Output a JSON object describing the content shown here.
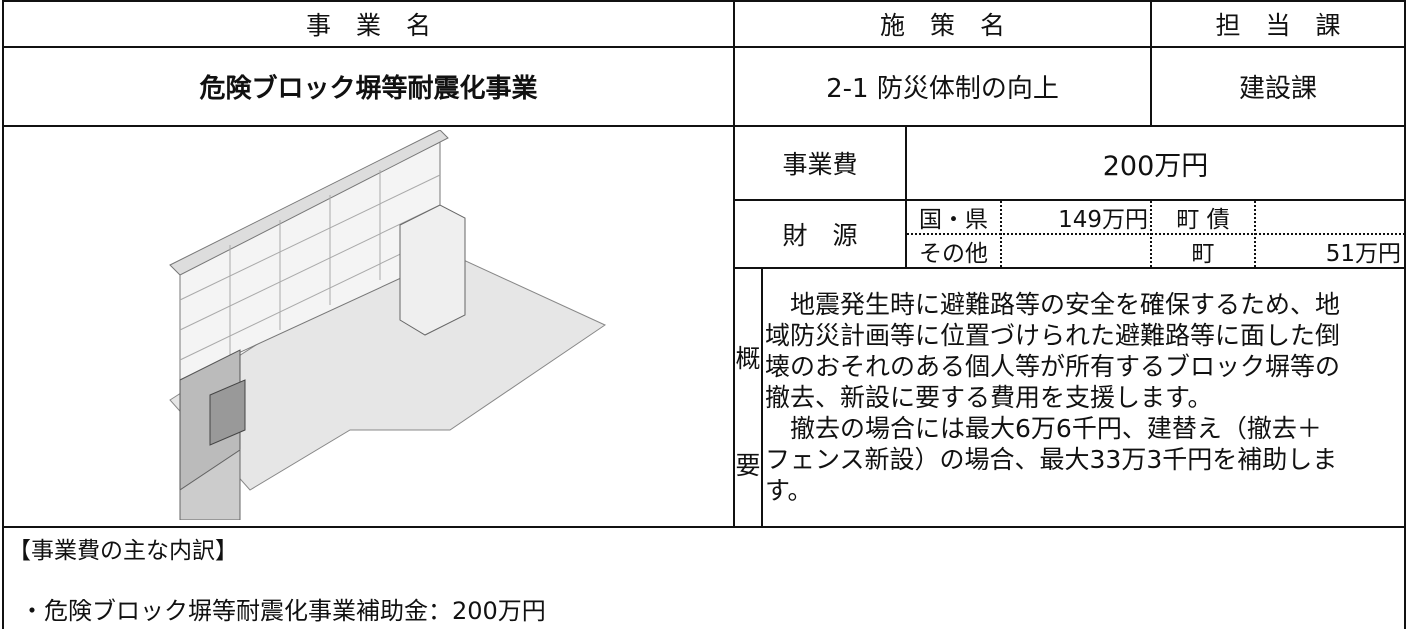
{
  "header": {
    "project_label": "事　業　名",
    "policy_label": "施　策　名",
    "department_label": "担　当　課"
  },
  "project_name": "危険ブロック塀等耐震化事業",
  "policy": "2-1 防災体制の向上",
  "department": "建設課",
  "cost": {
    "label": "事業費",
    "amount": "200万円"
  },
  "funding": {
    "label": "財　源",
    "national_prefectural_label": "国・県",
    "national_prefectural_amount": "149万円",
    "town_bond_label": "町 債",
    "other_label": "その他",
    "town_label": "町",
    "town_amount": "51万円"
  },
  "summary": {
    "label_top": "概",
    "label_bottom": "要",
    "lines": [
      "　地震発生時に避難路等の安全を確保するため、地",
      "域防災計画等に位置づけられた避難路等に面した倒",
      "壊のおそれのある個人等が所有するブロック塀等の",
      "撤去、新設に要する費用を支援します。",
      "　撤去の場合には最大6万6千円、建替え（撤去＋",
      "フェンス新設）の場合、最大33万3千円を補助しま",
      "す。"
    ]
  },
  "breakdown": {
    "title": "【事業費の主な内訳】",
    "items": [
      "・危険ブロック塀等耐震化事業補助金：200万円"
    ]
  }
}
